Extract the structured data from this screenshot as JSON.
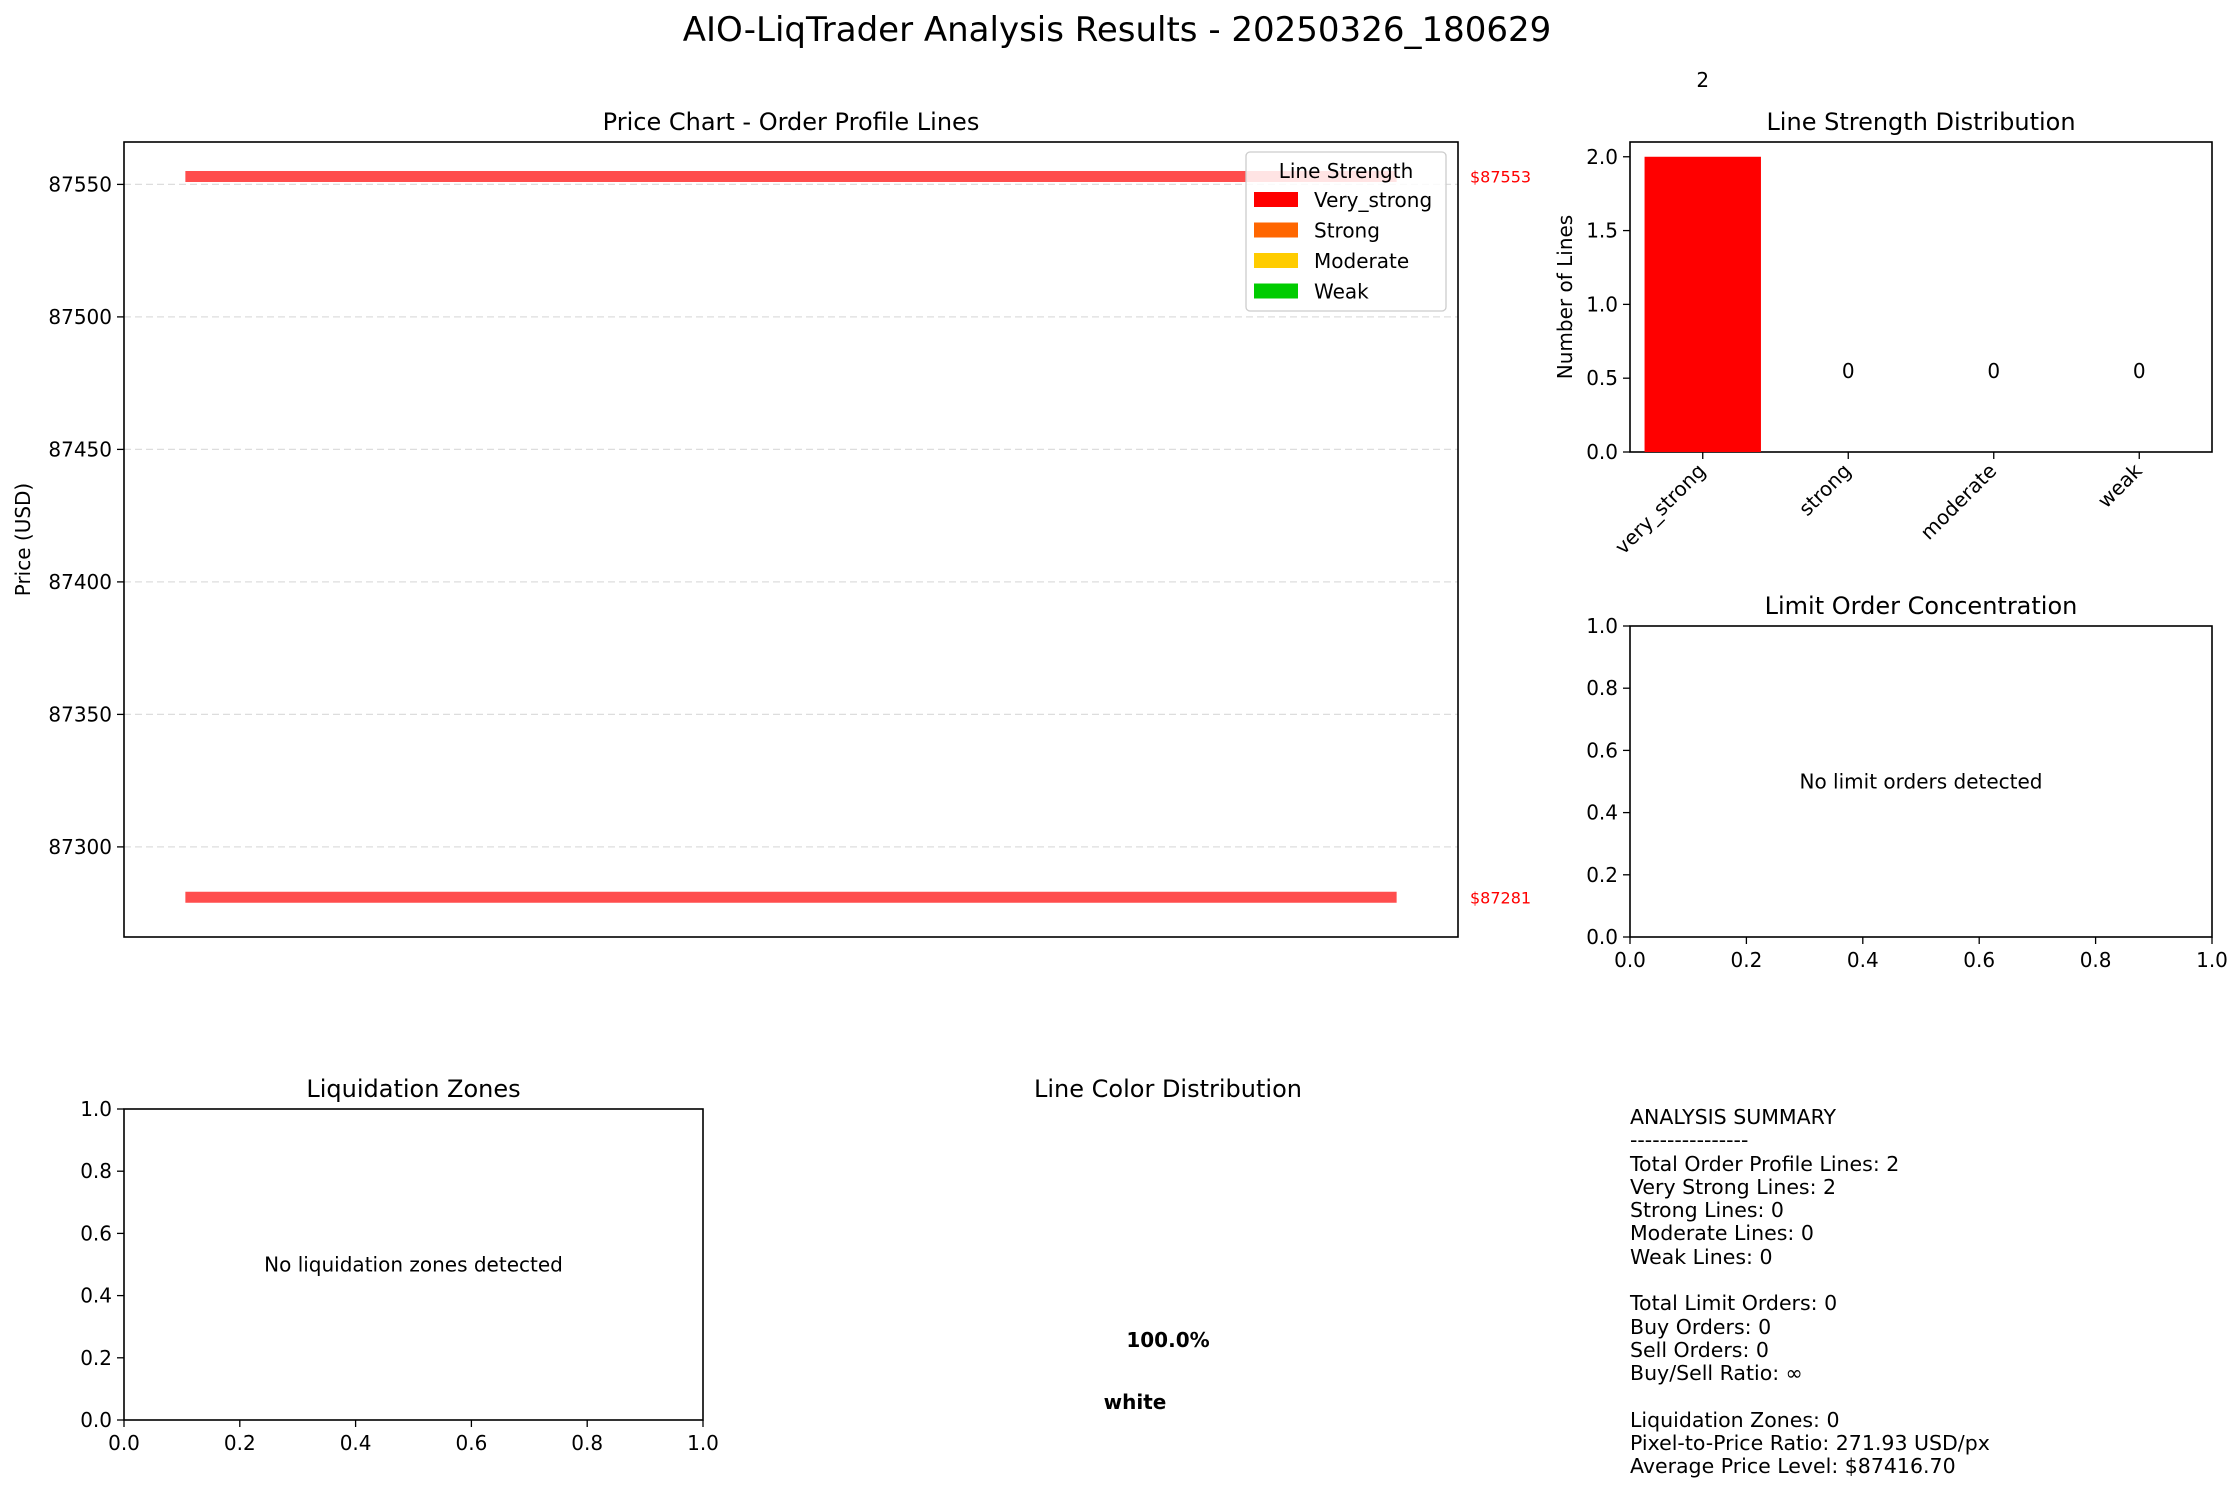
{
  "figure_title": "AIO-LiqTrader Analysis Results - 20250326_180629",
  "colors": {
    "very_strong": "#ff0000",
    "strong": "#ff6600",
    "moderate": "#ffcc00",
    "weak": "#00cc00",
    "line": "#ff4d4d",
    "price_label": "#ff0000"
  },
  "chart_data": [
    {
      "id": "price_chart",
      "type": "line",
      "title": "Price Chart - Order Profile Lines",
      "xlabel": "",
      "ylabel": "Price (USD)",
      "ylim": [
        87266,
        87566
      ],
      "yticks": [
        87300,
        87350,
        87400,
        87450,
        87500,
        87550
      ],
      "grid": true,
      "lines": [
        {
          "price": 87553,
          "x": [
            0.046,
            0.954
          ],
          "label": "$87553",
          "strength": "very_strong"
        },
        {
          "price": 87281,
          "x": [
            0.046,
            0.954
          ],
          "label": "$87281",
          "strength": "very_strong"
        }
      ],
      "legend": {
        "title": "Line Strength",
        "position": "top-right",
        "entries": [
          {
            "name": "Very_strong",
            "color": "#ff0000"
          },
          {
            "name": "Strong",
            "color": "#ff6600"
          },
          {
            "name": "Moderate",
            "color": "#ffcc00"
          },
          {
            "name": "Weak",
            "color": "#00cc00"
          }
        ]
      }
    },
    {
      "id": "strength_distribution",
      "type": "bar",
      "title": "Line Strength Distribution",
      "xlabel": "",
      "ylabel": "Number of Lines",
      "categories": [
        "very_strong",
        "strong",
        "moderate",
        "weak"
      ],
      "values": [
        2,
        0,
        0,
        0
      ],
      "value_labels": [
        "2",
        "0",
        "0",
        "0"
      ],
      "ylim": [
        0,
        2.1
      ],
      "yticks": [
        0.0,
        0.5,
        1.0,
        1.5,
        2.0
      ],
      "bar_colors": [
        "#ff0000",
        "#ff6600",
        "#ffcc00",
        "#00cc00"
      ]
    },
    {
      "id": "limit_orders",
      "type": "scatter",
      "title": "Limit Order Concentration",
      "xlim": [
        0,
        1
      ],
      "ylim": [
        0,
        1
      ],
      "xticks": [
        0.0,
        0.2,
        0.4,
        0.6,
        0.8,
        1.0
      ],
      "yticks": [
        0.0,
        0.2,
        0.4,
        0.6,
        0.8,
        1.0
      ],
      "message": "No limit orders detected",
      "points": []
    },
    {
      "id": "liquidation_zones",
      "type": "scatter",
      "title": "Liquidation Zones",
      "xlim": [
        0,
        1
      ],
      "ylim": [
        0,
        1
      ],
      "xticks": [
        0.0,
        0.2,
        0.4,
        0.6,
        0.8,
        1.0
      ],
      "yticks": [
        0.0,
        0.2,
        0.4,
        0.6,
        0.8,
        1.0
      ],
      "message": "No liquidation zones detected",
      "points": []
    },
    {
      "id": "color_distribution",
      "type": "pie",
      "title": "Line Color Distribution",
      "slices": [
        {
          "label": "white",
          "value": 100.0,
          "pct_label": "100.0%",
          "color": "#ffffff"
        }
      ]
    }
  ],
  "summary": {
    "lines": [
      "ANALYSIS SUMMARY",
      "----------------",
      "Total Order Profile Lines: 2",
      "Very Strong Lines: 2",
      "Strong Lines: 0",
      "Moderate Lines: 0",
      "Weak Lines: 0",
      "",
      "Total Limit Orders: 0",
      "Buy Orders: 0",
      "Sell Orders: 0",
      "Buy/Sell Ratio: ∞",
      "",
      "Liquidation Zones: 0",
      "Pixel-to-Price Ratio: 271.93 USD/px",
      "Average Price Level: $87416.70"
    ]
  }
}
